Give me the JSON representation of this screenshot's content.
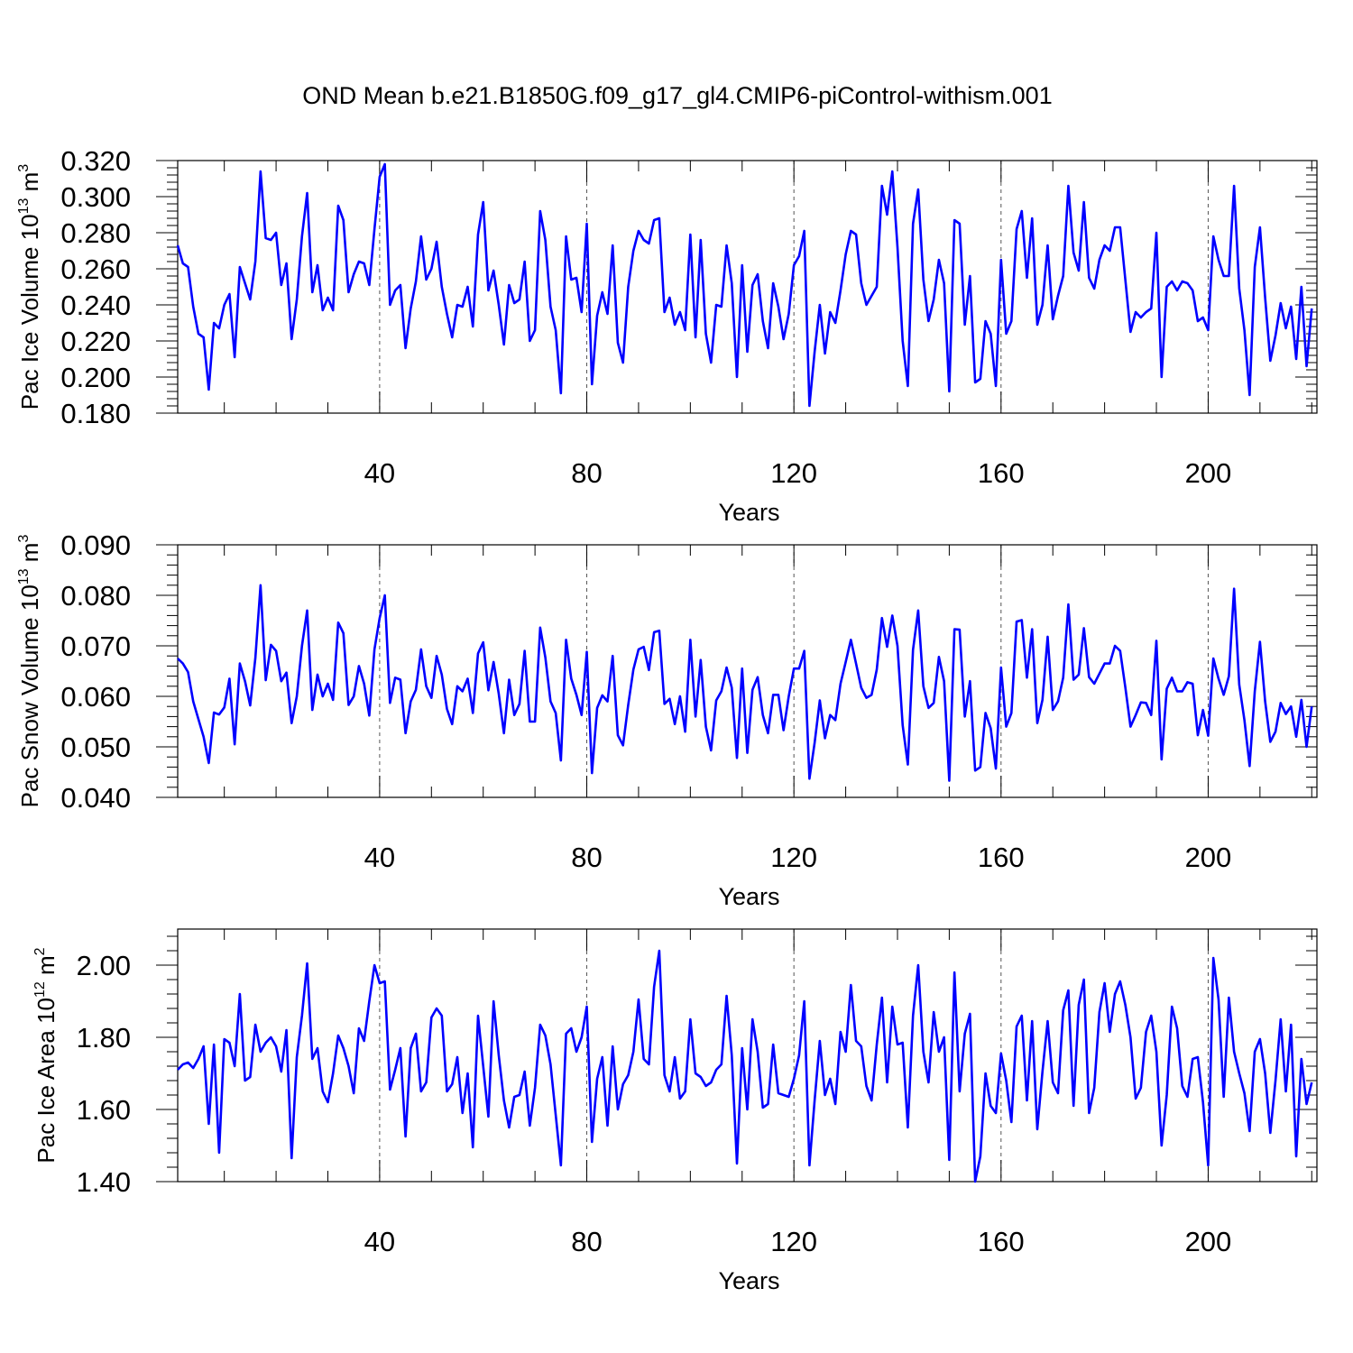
{
  "title": "OND Mean b.e21.B1850G.f09_g17_gl4.CMIP6-piControl-withism.001",
  "colors": {
    "line": "#0000ff",
    "axis": "#000000",
    "grid": "#555555",
    "background": "#ffffff"
  },
  "chart_data": [
    {
      "type": "line",
      "ylabel": "Pac Ice Volume 10^13 m^3",
      "ylabel_main": "Pac Ice Volume 10",
      "ylabel_exp": "13",
      "ylabel_unit": " m",
      "ylabel_unit_exp": "3",
      "xlabel": "Years",
      "xlim": [
        1,
        221
      ],
      "ylim": [
        0.18,
        0.32
      ],
      "xticks": [
        40,
        80,
        120,
        160,
        200
      ],
      "yticks": [
        0.18,
        0.2,
        0.22,
        0.24,
        0.26,
        0.28,
        0.3,
        0.32
      ],
      "ytick_labels": [
        "0.180",
        "0.200",
        "0.220",
        "0.240",
        "0.260",
        "0.280",
        "0.300",
        "0.320"
      ],
      "grid": "dashed vertical lines at major x ticks",
      "series": [
        {
          "values": [
            0.273,
            0.263,
            0.261,
            0.239,
            0.224,
            0.222,
            0.193,
            0.23,
            0.227,
            0.24,
            0.246,
            0.211,
            0.261,
            0.252,
            0.243,
            0.264,
            0.314,
            0.277,
            0.276,
            0.28,
            0.251,
            0.263,
            0.221,
            0.243,
            0.278,
            0.302,
            0.247,
            0.262,
            0.237,
            0.244,
            0.237,
            0.295,
            0.287,
            0.247,
            0.257,
            0.264,
            0.263,
            0.251,
            0.282,
            0.311,
            0.318,
            0.24,
            0.248,
            0.251,
            0.216,
            0.238,
            0.253,
            0.278,
            0.254,
            0.26,
            0.275,
            0.25,
            0.235,
            0.222,
            0.24,
            0.239,
            0.25,
            0.228,
            0.279,
            0.297,
            0.248,
            0.259,
            0.24,
            0.218,
            0.251,
            0.241,
            0.243,
            0.264,
            0.22,
            0.226,
            0.292,
            0.276,
            0.239,
            0.226,
            0.191,
            0.278,
            0.254,
            0.255,
            0.236,
            0.285,
            0.196,
            0.234,
            0.247,
            0.235,
            0.273,
            0.219,
            0.208,
            0.25,
            0.27,
            0.281,
            0.276,
            0.274,
            0.287,
            0.288,
            0.236,
            0.244,
            0.229,
            0.236,
            0.226,
            0.279,
            0.222,
            0.276,
            0.224,
            0.208,
            0.24,
            0.239,
            0.273,
            0.252,
            0.2,
            0.262,
            0.214,
            0.251,
            0.257,
            0.231,
            0.216,
            0.252,
            0.239,
            0.221,
            0.235,
            0.262,
            0.267,
            0.281,
            0.184,
            0.214,
            0.24,
            0.213,
            0.236,
            0.23,
            0.248,
            0.268,
            0.281,
            0.279,
            0.252,
            0.24,
            0.245,
            0.25,
            0.306,
            0.29,
            0.314,
            0.272,
            0.22,
            0.195,
            0.285,
            0.304,
            0.254,
            0.231,
            0.243,
            0.265,
            0.252,
            0.192,
            0.287,
            0.285,
            0.229,
            0.256,
            0.197,
            0.199,
            0.231,
            0.224,
            0.195,
            0.265,
            0.224,
            0.231,
            0.282,
            0.292,
            0.255,
            0.288,
            0.229,
            0.24,
            0.273,
            0.232,
            0.245,
            0.256,
            0.306,
            0.269,
            0.259,
            0.297,
            0.255,
            0.249,
            0.265,
            0.273,
            0.27,
            0.283,
            0.283,
            0.254,
            0.225,
            0.236,
            0.233,
            0.236,
            0.238,
            0.28,
            0.2,
            0.25,
            0.253,
            0.248,
            0.253,
            0.252,
            0.248,
            0.231,
            0.233,
            0.226,
            0.278,
            0.265,
            0.256,
            0.256,
            0.306,
            0.249,
            0.226,
            0.19,
            0.261,
            0.283,
            0.244,
            0.209,
            0.223,
            0.241,
            0.227,
            0.239,
            0.21,
            0.25,
            0.206,
            0.238
          ]
        }
      ]
    },
    {
      "type": "line",
      "ylabel": "Pac Snow Volume 10^13 m^3",
      "ylabel_main": "Pac Snow Volume 10",
      "ylabel_exp": "13",
      "ylabel_unit": " m",
      "ylabel_unit_exp": "3",
      "xlabel": "Years",
      "xlim": [
        1,
        221
      ],
      "ylim": [
        0.04,
        0.09
      ],
      "xticks": [
        40,
        80,
        120,
        160,
        200
      ],
      "yticks": [
        0.04,
        0.05,
        0.06,
        0.07,
        0.08,
        0.09
      ],
      "ytick_labels": [
        "0.040",
        "0.050",
        "0.060",
        "0.070",
        "0.080",
        "0.090"
      ],
      "grid": "dashed vertical lines at major x ticks",
      "series": [
        {
          "values": [
            0.0675,
            0.0665,
            0.0648,
            0.059,
            0.0555,
            0.052,
            0.0468,
            0.0568,
            0.0564,
            0.0578,
            0.0635,
            0.0505,
            0.0665,
            0.063,
            0.0582,
            0.0676,
            0.082,
            0.0632,
            0.0702,
            0.069,
            0.063,
            0.0647,
            0.0547,
            0.06,
            0.07,
            0.077,
            0.0573,
            0.0643,
            0.06,
            0.0625,
            0.0593,
            0.0746,
            0.0725,
            0.0583,
            0.06,
            0.066,
            0.0625,
            0.0562,
            0.0693,
            0.0755,
            0.08,
            0.0587,
            0.0637,
            0.0633,
            0.0527,
            0.059,
            0.0613,
            0.0693,
            0.062,
            0.0597,
            0.068,
            0.0643,
            0.0575,
            0.0545,
            0.062,
            0.061,
            0.0635,
            0.0567,
            0.0685,
            0.0707,
            0.0612,
            0.0668,
            0.0605,
            0.0527,
            0.0633,
            0.0563,
            0.0585,
            0.069,
            0.055,
            0.055,
            0.0736,
            0.0677,
            0.059,
            0.0567,
            0.0473,
            0.0712,
            0.0635,
            0.0603,
            0.0563,
            0.0688,
            0.0448,
            0.0577,
            0.0602,
            0.059,
            0.068,
            0.0523,
            0.0503,
            0.0583,
            0.0653,
            0.0693,
            0.0698,
            0.0652,
            0.0727,
            0.073,
            0.0585,
            0.0595,
            0.0545,
            0.06,
            0.053,
            0.0712,
            0.056,
            0.0672,
            0.054,
            0.0493,
            0.0592,
            0.061,
            0.0657,
            0.0617,
            0.0478,
            0.0655,
            0.0488,
            0.0613,
            0.0638,
            0.0563,
            0.0527,
            0.0603,
            0.0603,
            0.0533,
            0.06,
            0.0655,
            0.0655,
            0.069,
            0.0437,
            0.0508,
            0.0592,
            0.0517,
            0.0563,
            0.0553,
            0.0625,
            0.0668,
            0.0712,
            0.0665,
            0.0617,
            0.0597,
            0.0603,
            0.0653,
            0.0755,
            0.0698,
            0.076,
            0.07,
            0.0543,
            0.0465,
            0.0692,
            0.077,
            0.062,
            0.0577,
            0.0587,
            0.0678,
            0.063,
            0.0433,
            0.0733,
            0.0732,
            0.056,
            0.063,
            0.0453,
            0.046,
            0.0567,
            0.0537,
            0.0457,
            0.0657,
            0.054,
            0.0567,
            0.0748,
            0.0751,
            0.0637,
            0.0733,
            0.0547,
            0.0593,
            0.0718,
            0.0573,
            0.059,
            0.0637,
            0.0782,
            0.0633,
            0.0643,
            0.0735,
            0.0638,
            0.0625,
            0.0645,
            0.0665,
            0.0665,
            0.07,
            0.069,
            0.0618,
            0.054,
            0.0563,
            0.0588,
            0.0587,
            0.0563,
            0.071,
            0.0475,
            0.0615,
            0.0637,
            0.061,
            0.061,
            0.0628,
            0.0625,
            0.0523,
            0.0573,
            0.0522,
            0.0675,
            0.0635,
            0.0603,
            0.064,
            0.0813,
            0.0623,
            0.0553,
            0.0462,
            0.061,
            0.0708,
            0.059,
            0.051,
            0.053,
            0.0587,
            0.0565,
            0.058,
            0.052,
            0.0593,
            0.05,
            0.058
          ]
        }
      ]
    },
    {
      "type": "line",
      "ylabel": "Pac Ice Area 10^12 m^2",
      "ylabel_main": "Pac Ice Area 10",
      "ylabel_exp": "12",
      "ylabel_unit": " m",
      "ylabel_unit_exp": "2",
      "xlabel": "Years",
      "xlim": [
        1,
        221
      ],
      "ylim": [
        1.4,
        2.1
      ],
      "xticks": [
        40,
        80,
        120,
        160,
        200
      ],
      "yticks": [
        1.4,
        1.6,
        1.8,
        2.0
      ],
      "ytick_labels": [
        "1.40",
        "1.60",
        "1.80",
        "2.00"
      ],
      "grid": "dashed vertical lines at major x ticks",
      "series": [
        {
          "values": [
            1.71,
            1.725,
            1.73,
            1.715,
            1.74,
            1.775,
            1.56,
            1.78,
            1.48,
            1.795,
            1.785,
            1.72,
            1.92,
            1.68,
            1.69,
            1.835,
            1.76,
            1.785,
            1.8,
            1.775,
            1.705,
            1.82,
            1.465,
            1.745,
            1.86,
            2.005,
            1.74,
            1.77,
            1.65,
            1.62,
            1.7,
            1.805,
            1.77,
            1.72,
            1.645,
            1.825,
            1.79,
            1.9,
            2.0,
            1.95,
            1.955,
            1.655,
            1.71,
            1.77,
            1.525,
            1.77,
            1.81,
            1.65,
            1.675,
            1.855,
            1.88,
            1.86,
            1.65,
            1.67,
            1.745,
            1.59,
            1.7,
            1.495,
            1.86,
            1.72,
            1.58,
            1.9,
            1.75,
            1.625,
            1.55,
            1.635,
            1.64,
            1.705,
            1.555,
            1.66,
            1.835,
            1.805,
            1.725,
            1.585,
            1.445,
            1.81,
            1.825,
            1.76,
            1.8,
            1.885,
            1.51,
            1.685,
            1.745,
            1.555,
            1.775,
            1.6,
            1.67,
            1.695,
            1.76,
            1.905,
            1.74,
            1.725,
            1.94,
            2.04,
            1.695,
            1.65,
            1.745,
            1.63,
            1.65,
            1.85,
            1.7,
            1.69,
            1.665,
            1.675,
            1.71,
            1.725,
            1.915,
            1.75,
            1.45,
            1.77,
            1.6,
            1.85,
            1.76,
            1.605,
            1.615,
            1.78,
            1.645,
            1.64,
            1.635,
            1.685,
            1.75,
            1.9,
            1.445,
            1.625,
            1.79,
            1.64,
            1.685,
            1.615,
            1.815,
            1.76,
            1.945,
            1.79,
            1.775,
            1.665,
            1.625,
            1.78,
            1.91,
            1.675,
            1.885,
            1.78,
            1.785,
            1.55,
            1.86,
            2.0,
            1.76,
            1.675,
            1.87,
            1.76,
            1.8,
            1.46,
            1.98,
            1.65,
            1.81,
            1.865,
            1.4,
            1.47,
            1.7,
            1.61,
            1.59,
            1.755,
            1.68,
            1.565,
            1.83,
            1.86,
            1.625,
            1.845,
            1.545,
            1.705,
            1.845,
            1.675,
            1.645,
            1.875,
            1.93,
            1.61,
            1.89,
            1.96,
            1.59,
            1.66,
            1.87,
            1.95,
            1.815,
            1.92,
            1.955,
            1.89,
            1.8,
            1.63,
            1.66,
            1.815,
            1.86,
            1.76,
            1.5,
            1.64,
            1.885,
            1.825,
            1.665,
            1.635,
            1.74,
            1.745,
            1.62,
            1.445,
            2.02,
            1.905,
            1.635,
            1.91,
            1.76,
            1.7,
            1.645,
            1.54,
            1.76,
            1.795,
            1.7,
            1.535,
            1.68,
            1.85,
            1.65,
            1.835,
            1.47,
            1.74,
            1.615,
            1.675
          ]
        }
      ]
    }
  ]
}
